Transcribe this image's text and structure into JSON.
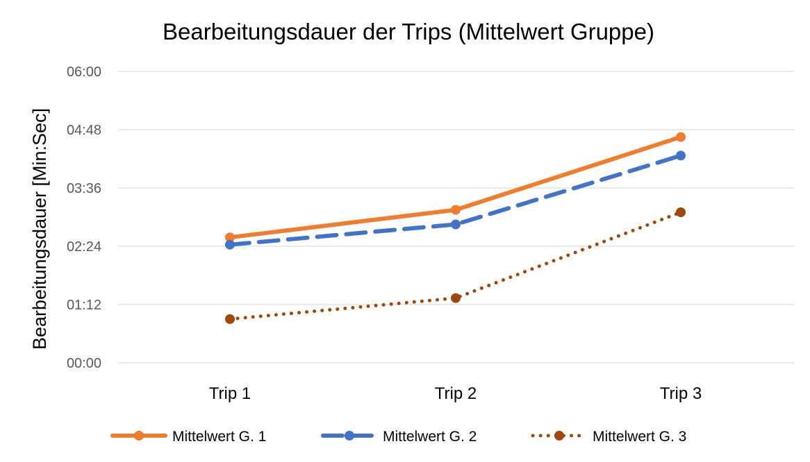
{
  "chart_data": {
    "type": "line",
    "title": "Bearbeitungsdauer der Trips (Mittelwert Gruppe)",
    "xlabel": "",
    "ylabel": "Bearbeitungsdauer [Min:Sec]",
    "categories": [
      "Trip 1",
      "Trip 2",
      "Trip 3"
    ],
    "y_tick_labels": [
      "00:00",
      "01:12",
      "02:24",
      "03:36",
      "04:48",
      "06:00"
    ],
    "y_ticks_seconds": [
      0,
      72,
      144,
      216,
      288,
      360
    ],
    "ylim_seconds": [
      0,
      360
    ],
    "y_unit": "seconds (displayed as Min:Sec)",
    "grid": true,
    "legend_position": "bottom",
    "series": [
      {
        "name": "Mittelwert G. 1",
        "values_seconds": [
          155,
          189,
          279
        ],
        "color": "#ED7D31",
        "line_style": "solid"
      },
      {
        "name": "Mittelwert G. 2",
        "values_seconds": [
          146,
          171,
          256
        ],
        "color": "#4472C4",
        "line_style": "dashed"
      },
      {
        "name": "Mittelwert G. 3",
        "values_seconds": [
          54,
          80,
          186
        ],
        "color": "#9E480E",
        "line_style": "dotted"
      }
    ]
  }
}
